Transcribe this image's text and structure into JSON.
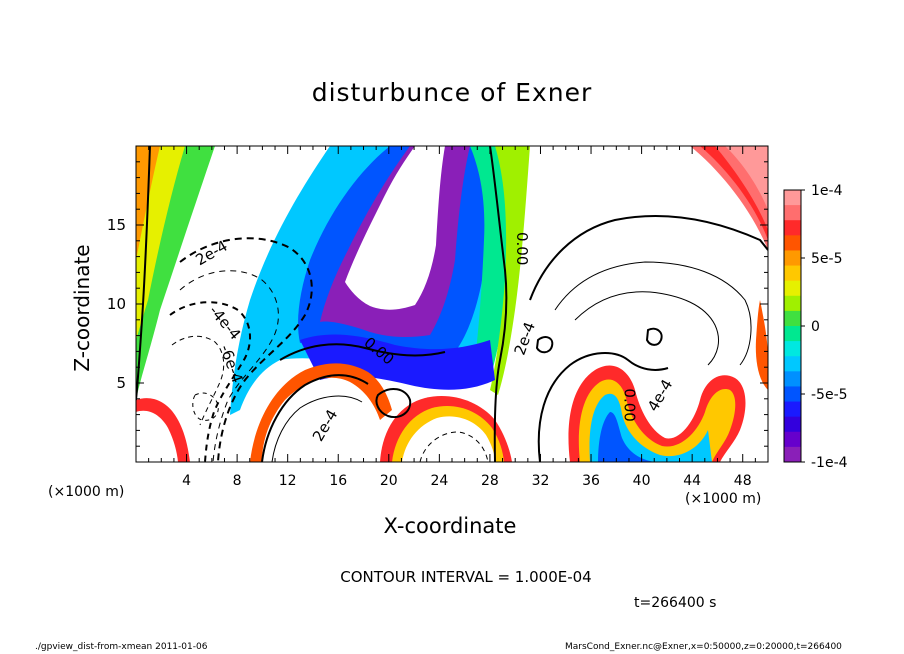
{
  "chart_data": {
    "type": "contour",
    "title": "disturbunce of Exner",
    "xlabel": "X-coordinate",
    "ylabel": "Z-coordinate",
    "x_unit_label_left": "(×1000 m)",
    "x_unit_label_right": "(×1000 m)",
    "xlim": [
      0,
      50
    ],
    "ylim": [
      0,
      20
    ],
    "x_ticks": [
      4,
      8,
      12,
      16,
      20,
      24,
      28,
      32,
      36,
      40,
      44,
      48
    ],
    "x_tick_labels": [
      "4",
      "8",
      "12",
      "16",
      "20",
      "24",
      "28",
      "32",
      "36",
      "40",
      "44",
      "48"
    ],
    "y_ticks": [
      5,
      10,
      15
    ],
    "y_tick_labels": [
      "5",
      "10",
      "15"
    ],
    "colorbar": {
      "min": -0.0001,
      "max": 0.0001,
      "tick_values": [
        0.0001,
        5e-05,
        0,
        -5e-05,
        -0.0001
      ],
      "tick_labels": [
        "1e-4",
        "5e-5",
        "0",
        "-5e-5",
        "-1e-4"
      ],
      "colors": [
        "#ff9999",
        "#ff6e6e",
        "#ff2a2a",
        "#ff5500",
        "#ff9900",
        "#ffc800",
        "#e6f000",
        "#a0f000",
        "#40e040",
        "#00e890",
        "#00e8e0",
        "#00c8ff",
        "#0090ff",
        "#0055ff",
        "#1a1aff",
        "#3300dd",
        "#6600cc",
        "#8a1fb8"
      ]
    },
    "contour_labels": [
      {
        "text": "2e-4",
        "x": 6.0,
        "z": 13.2,
        "angle": -30
      },
      {
        "text": "-4e-4",
        "x": 7.0,
        "z": 8.8,
        "angle": 50
      },
      {
        "text": "-6e-4",
        "x": 7.5,
        "z": 6.2,
        "angle": 70
      },
      {
        "text": "0.00",
        "x": 30.5,
        "z": 13.5,
        "angle": 90
      },
      {
        "text": "0.00",
        "x": 19.2,
        "z": 7.0,
        "angle": 40
      },
      {
        "text": "2e-4",
        "x": 30.8,
        "z": 7.8,
        "angle": -70
      },
      {
        "text": "2e-4",
        "x": 15.0,
        "z": 2.3,
        "angle": -60
      },
      {
        "text": "0.00",
        "x": 39.0,
        "z": 3.6,
        "angle": 90
      },
      {
        "text": "4e-4",
        "x": 41.5,
        "z": 4.2,
        "angle": -60
      }
    ],
    "contour_interval_label": "CONTOUR INTERVAL = 1.000E-04",
    "time_label": "t=266400 s"
  },
  "footer": {
    "left": "./gpview_dist-from-xmean   2011-01-06",
    "right": "MarsCond_Exner.nc@Exner,x=0:50000,z=0:20000,t=266400"
  }
}
